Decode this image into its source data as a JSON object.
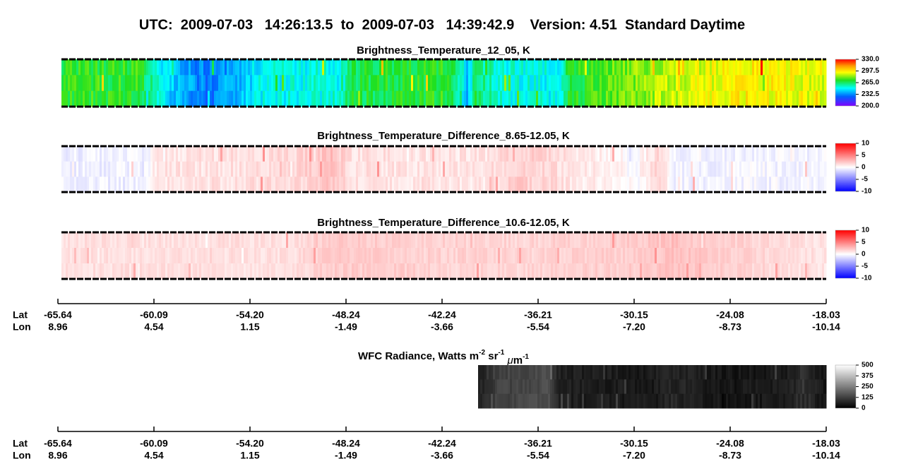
{
  "title": "UTC:  2009-07-03   14:26:13.5  to  2009-07-03   14:39:42.9    Version: 4.51  Standard Daytime",
  "panels": [
    {
      "title": "Brightness_Temperature_12_05, K",
      "colorbar": [
        "330.0",
        "297.5",
        "265.0",
        "232.5",
        "200.0"
      ]
    },
    {
      "title": "Brightness_Temperature_Difference_8.65-12.05, K",
      "colorbar": [
        "10",
        "5",
        "0",
        "-5",
        "-10"
      ]
    },
    {
      "title": "Brightness_Temperature_Difference_10.6-12.05, K",
      "colorbar": [
        "10",
        "5",
        "0",
        "-5",
        "-10"
      ]
    }
  ],
  "axes": [
    {
      "rows": [
        {
          "label": "Lat",
          "values": [
            "-65.64",
            "-60.09",
            "-54.20",
            "-48.24",
            "-42.24",
            "-36.21",
            "-30.15",
            "-24.08",
            "-18.03"
          ]
        },
        {
          "label": "Lon",
          "values": [
            "8.96",
            "4.54",
            "1.15",
            "-1.49",
            "-3.66",
            "-5.54",
            "-7.20",
            "-8.73",
            "-10.14"
          ]
        }
      ]
    },
    {
      "rows": [
        {
          "label": "Lat",
          "values": [
            "-65.64",
            "-60.09",
            "-54.20",
            "-48.24",
            "-42.24",
            "-36.21",
            "-30.15",
            "-24.08",
            "-18.03"
          ]
        },
        {
          "label": "Lon",
          "values": [
            "8.96",
            "4.54",
            "1.15",
            "-1.49",
            "-3.66",
            "-5.54",
            "-7.20",
            "-8.73",
            "-10.14"
          ]
        }
      ]
    }
  ],
  "wfc": {
    "title": [
      "WFC Radiance, Watts m",
      "-2",
      " sr",
      "-1",
      " ",
      "μ",
      "m",
      "-1"
    ],
    "colorbar": [
      "500",
      "375",
      "250",
      "125",
      "0"
    ]
  }
}
